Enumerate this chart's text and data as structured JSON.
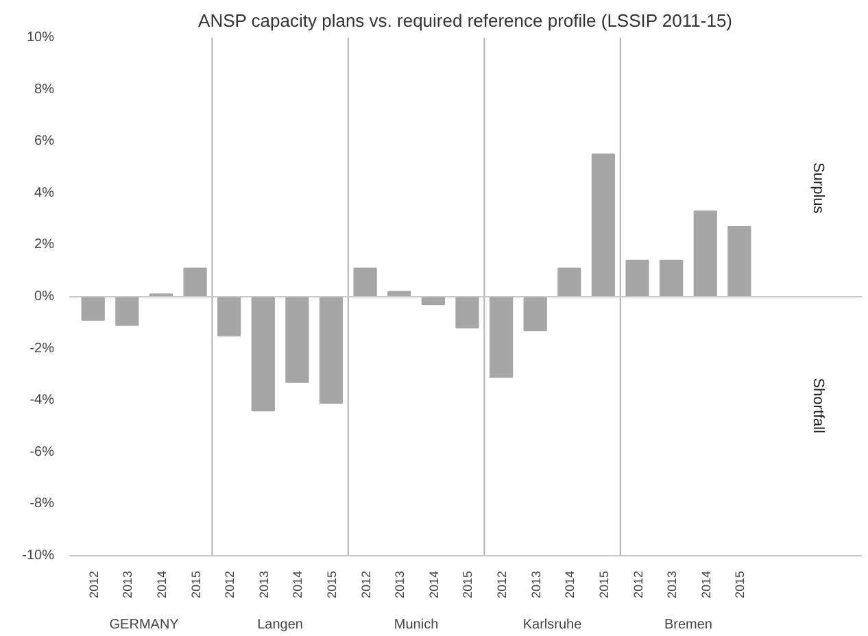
{
  "chart_data": {
    "type": "bar",
    "title": "ANSP capacity plans vs. required reference profile (LSSIP 2011-15)",
    "categories": [
      "2012",
      "2013",
      "2014",
      "2015",
      "2012",
      "2013",
      "2014",
      "2015",
      "2012",
      "2013",
      "2014",
      "2015",
      "2012",
      "2013",
      "2014",
      "2015",
      "2012",
      "2013",
      "2014",
      "2015"
    ],
    "values": [
      -0.9,
      -1.1,
      0.1,
      1.1,
      -1.5,
      -4.4,
      -3.3,
      -4.1,
      1.1,
      0.2,
      -0.3,
      -1.2,
      -3.1,
      -1.3,
      1.1,
      5.5,
      1.4,
      1.4,
      3.3,
      2.7
    ],
    "color": "#a6a6a6",
    "ylim": [
      -10,
      10
    ],
    "yticks": [
      {
        "value": 10,
        "label": "10%"
      },
      {
        "value": 8,
        "label": "8%"
      },
      {
        "value": 6,
        "label": "6%"
      },
      {
        "value": 4,
        "label": "4%"
      },
      {
        "value": 2,
        "label": "2%"
      },
      {
        "value": 0,
        "label": "0%"
      },
      {
        "value": -2,
        "label": "-2%"
      },
      {
        "value": -4,
        "label": "-4%"
      },
      {
        "value": -6,
        "label": "-6%"
      },
      {
        "value": -8,
        "label": "-8%"
      },
      {
        "value": -10,
        "label": "-10%"
      }
    ],
    "annotations": [
      "GERMANY",
      "Langen",
      "Munich",
      "Karlsruhe",
      "Bremen",
      "Surplus",
      "Shortfall"
    ],
    "ref_lines": [
      {
        "axis": "y",
        "value": 0,
        "color": "#c8c8c8"
      }
    ],
    "grid": false
  }
}
